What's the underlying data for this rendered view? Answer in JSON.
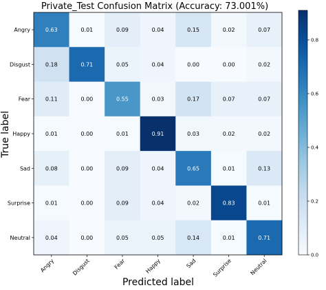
{
  "chart_data": {
    "type": "heatmap",
    "title": "Private_Test  Confusion Matrix (Accuracy: 73.001%)",
    "xlabel": "Predicted label",
    "ylabel": "True label",
    "x_categories": [
      "Angry",
      "Disgust",
      "Fear",
      "Happy",
      "Sad",
      "Surprise",
      "Neutral"
    ],
    "y_categories": [
      "Angry",
      "Disgust",
      "Fear",
      "Happy",
      "Sad",
      "Surprise",
      "Neutral"
    ],
    "values": [
      [
        0.63,
        0.01,
        0.09,
        0.04,
        0.15,
        0.02,
        0.07
      ],
      [
        0.18,
        0.71,
        0.05,
        0.04,
        0.0,
        0.0,
        0.02
      ],
      [
        0.11,
        0.0,
        0.55,
        0.03,
        0.17,
        0.07,
        0.07
      ],
      [
        0.01,
        0.0,
        0.01,
        0.91,
        0.03,
        0.02,
        0.02
      ],
      [
        0.08,
        0.0,
        0.09,
        0.04,
        0.65,
        0.01,
        0.13
      ],
      [
        0.01,
        0.0,
        0.09,
        0.04,
        0.02,
        0.83,
        0.01
      ],
      [
        0.04,
        0.0,
        0.05,
        0.05,
        0.14,
        0.01,
        0.71
      ]
    ],
    "value_range": [
      0.0,
      0.91
    ],
    "colormap": "Blues",
    "colorbar_ticks": [
      0.0,
      0.2,
      0.4,
      0.6,
      0.8
    ],
    "colorbar_tick_labels": [
      "0.0",
      "0.2",
      "0.4",
      "0.6",
      "0.8"
    ],
    "legend": "colorbar-right",
    "grid": false
  }
}
